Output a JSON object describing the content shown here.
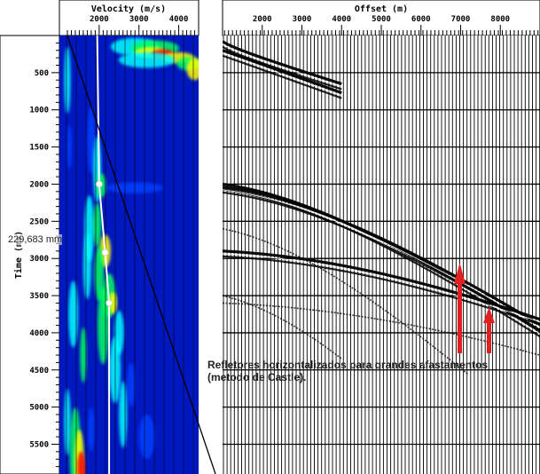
{
  "chart_data": [
    {
      "type": "heatmap",
      "xlabel": "Velocity (m/s)",
      "ylabel": "Time (ms)",
      "xlim": [
        1000,
        4500
      ],
      "ylim": [
        0,
        5900
      ],
      "x_ticks": [
        2000,
        3000,
        4000
      ],
      "y_ticks": [
        500,
        1000,
        1500,
        2000,
        2500,
        3000,
        3500,
        4000,
        4500,
        5000,
        5500
      ],
      "colormap": [
        "#0000c8",
        "#0040ff",
        "#00ffff",
        "#00ff60",
        "#ffff00",
        "#ff0000"
      ],
      "picked_velocity_function": [
        {
          "time": 2000,
          "velocity": 2000
        },
        {
          "time": 2920,
          "velocity": 2150
        },
        {
          "time": 3600,
          "velocity": 2250
        }
      ]
    },
    {
      "type": "line",
      "xlabel": "Offset (m)",
      "ylabel": "",
      "xlim": [
        1000,
        9000
      ],
      "ylim": [
        0,
        5900
      ],
      "x_ticks": [
        2000,
        3000,
        4000,
        5000,
        6000,
        7000,
        8000
      ],
      "grid": true,
      "series": [
        {
          "t0": 80,
          "velocity": 6000,
          "x_end": 4000
        },
        {
          "t0": 200,
          "velocity": 5200,
          "x_end": 4000
        },
        {
          "t0": 2000,
          "velocity": 2600,
          "x_end": 9000
        },
        {
          "t0": 2040,
          "velocity": 2700,
          "x_end": 9000
        },
        {
          "t0": 2900,
          "velocity": 3600,
          "x_end": 9000
        },
        {
          "t0": 3600,
          "velocity": 3800,
          "x_end": 9000
        },
        {
          "t0": 2600,
          "velocity": 1900,
          "x_end": 7200
        },
        {
          "t0": 3500,
          "velocity": 1500,
          "x_end": 4000
        }
      ]
    }
  ],
  "annotations": {
    "text_line1": "Refletores horizontalizados para grandes afastamentos",
    "text_line2": "(metodo de Castle).",
    "measure_label": "229,683 mm",
    "arrow_color": "#e02020"
  }
}
